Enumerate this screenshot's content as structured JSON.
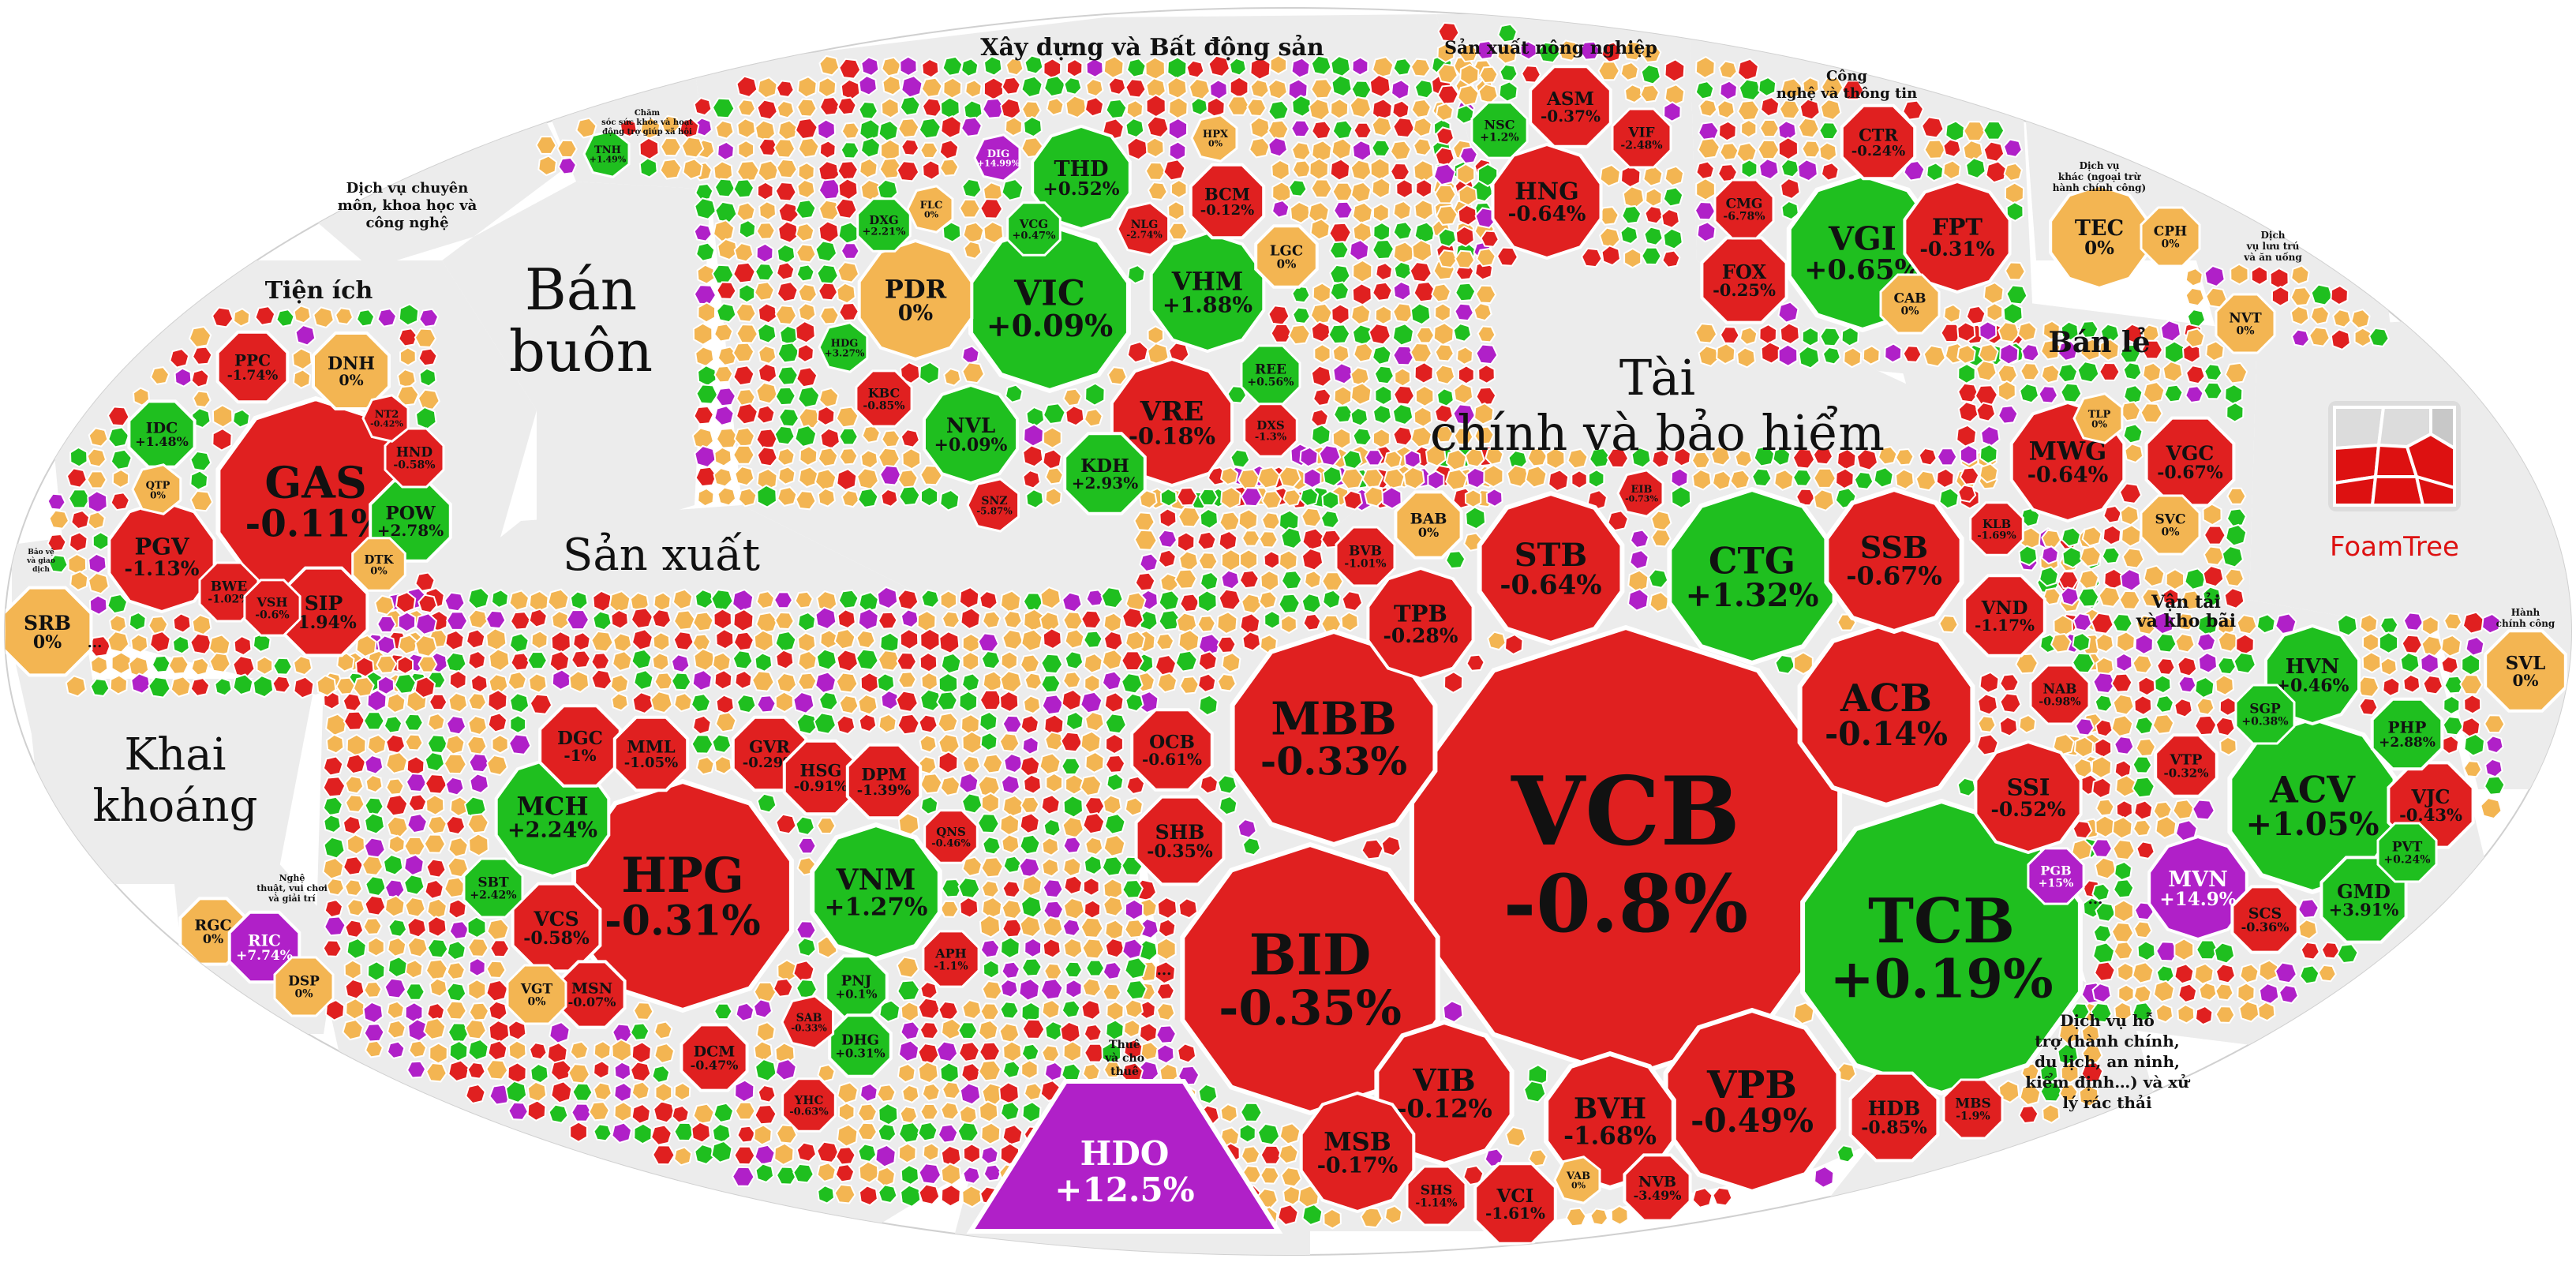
{
  "colors": {
    "up": "#1fbf1f",
    "down": "#e02020",
    "flat": "#f3b552",
    "ceiling": "#b020c8",
    "floor": "#4aa3df",
    "group_bg": "#ededed",
    "gap": "#ffffff"
  },
  "branding": {
    "logo_text": "FoamTree"
  },
  "chart_data": {
    "type": "treemap",
    "title": "",
    "groups": [
      {
        "name": "Xây dựng và Bất động sản",
        "items": [
          {
            "ticker": "VIC",
            "change": 0.09
          },
          {
            "ticker": "VHM",
            "change": 1.88
          },
          {
            "ticker": "VRE",
            "change": -0.18
          },
          {
            "ticker": "PDR",
            "change": 0
          },
          {
            "ticker": "THD",
            "change": 0.52
          },
          {
            "ticker": "NVL",
            "change": 0.09
          },
          {
            "ticker": "KDH",
            "change": 2.93
          },
          {
            "ticker": "BCM",
            "change": -0.12
          },
          {
            "ticker": "VCG",
            "change": 0.47
          },
          {
            "ticker": "NLG",
            "change": -2.74
          },
          {
            "ticker": "DXG",
            "change": 2.21
          },
          {
            "ticker": "LGC",
            "change": 0
          },
          {
            "ticker": "REE",
            "change": 0.56
          },
          {
            "ticker": "DXS",
            "change": -1.3
          },
          {
            "ticker": "KBC",
            "change": -0.85
          },
          {
            "ticker": "HPX",
            "change": 0
          },
          {
            "ticker": "SNZ",
            "change": -5.87
          },
          {
            "ticker": "FLC",
            "change": 0
          },
          {
            "ticker": "HDG",
            "change": 3.27
          },
          {
            "ticker": "DIG",
            "change": 14.99
          }
        ]
      },
      {
        "name": "Sản xuất nông nghiệp",
        "items": [
          {
            "ticker": "HNG",
            "change": -0.64
          },
          {
            "ticker": "ASM",
            "change": -0.37
          },
          {
            "ticker": "VIF",
            "change": -2.48
          },
          {
            "ticker": "NSC",
            "change": 1.2
          }
        ]
      },
      {
        "name": "Công nghệ và thông tin",
        "items": [
          {
            "ticker": "VGI",
            "change": 0.65
          },
          {
            "ticker": "FPT",
            "change": -0.31
          },
          {
            "ticker": "CTR",
            "change": -0.24
          },
          {
            "ticker": "FOX",
            "change": -0.25
          },
          {
            "ticker": "CAB",
            "change": 0
          },
          {
            "ticker": "CMG",
            "change": -6.78
          }
        ]
      },
      {
        "name": "Tài chính và bảo hiểm",
        "items": [
          {
            "ticker": "VCB",
            "change": -0.8
          },
          {
            "ticker": "TCB",
            "change": 0.19
          },
          {
            "ticker": "BID",
            "change": -0.35
          },
          {
            "ticker": "CTG",
            "change": 1.32
          },
          {
            "ticker": "MBB",
            "change": -0.33
          },
          {
            "ticker": "ACB",
            "change": -0.14
          },
          {
            "ticker": "VPB",
            "change": -0.49
          },
          {
            "ticker": "STB",
            "change": -0.64
          },
          {
            "ticker": "SSB",
            "change": -0.67
          },
          {
            "ticker": "VIB",
            "change": -0.12
          },
          {
            "ticker": "BVH",
            "change": -1.68
          },
          {
            "ticker": "SSI",
            "change": -0.52
          },
          {
            "ticker": "TPB",
            "change": -0.28
          },
          {
            "ticker": "MSB",
            "change": -0.17
          },
          {
            "ticker": "HDB",
            "change": -0.85
          },
          {
            "ticker": "SHB",
            "change": -0.35
          },
          {
            "ticker": "VND",
            "change": -1.17
          },
          {
            "ticker": "BAB",
            "change": 0
          },
          {
            "ticker": "OCB",
            "change": -0.61
          },
          {
            "ticker": "EIB",
            "change": -0.73
          },
          {
            "ticker": "BVB",
            "change": -1.01
          },
          {
            "ticker": "VCI",
            "change": -1.61
          },
          {
            "ticker": "SHS",
            "change": -1.14
          },
          {
            "ticker": "NVB",
            "change": -3.49
          },
          {
            "ticker": "MBS",
            "change": -1.9
          },
          {
            "ticker": "KLB",
            "change": -1.69
          },
          {
            "ticker": "NAB",
            "change": -0.98
          },
          {
            "ticker": "VAB",
            "change": 0
          },
          {
            "ticker": "PGB",
            "change": 15
          }
        ]
      },
      {
        "name": "Sản xuất",
        "items": [
          {
            "ticker": "HPG",
            "change": -0.31
          },
          {
            "ticker": "VNM",
            "change": 1.27
          },
          {
            "ticker": "MCH",
            "change": 2.24
          },
          {
            "ticker": "DGC",
            "change": -1
          },
          {
            "ticker": "MML",
            "change": -1.05
          },
          {
            "ticker": "GVR",
            "change": -0.29
          },
          {
            "ticker": "HSG",
            "change": -0.91
          },
          {
            "ticker": "DPM",
            "change": -1.39
          },
          {
            "ticker": "VCS",
            "change": -0.58
          },
          {
            "ticker": "SBT",
            "change": 2.42
          },
          {
            "ticker": "MSN",
            "change": -0.07
          },
          {
            "ticker": "VGT",
            "change": 0
          },
          {
            "ticker": "DCM",
            "change": -0.47
          },
          {
            "ticker": "PNJ",
            "change": 0.1
          },
          {
            "ticker": "DHG",
            "change": 0.31
          },
          {
            "ticker": "APH",
            "change": -1.1
          },
          {
            "ticker": "QNS",
            "change": -0.46
          },
          {
            "ticker": "YHC",
            "change": -0.63
          },
          {
            "ticker": "SAB",
            "change": -0.33
          }
        ]
      },
      {
        "name": "Tiện ích",
        "items": [
          {
            "ticker": "GAS",
            "change": -0.11
          },
          {
            "ticker": "PGV",
            "change": -1.13
          },
          {
            "ticker": "POW",
            "change": 2.78
          },
          {
            "ticker": "SIP",
            "change": -1.94
          },
          {
            "ticker": "DNH",
            "change": 0
          },
          {
            "ticker": "PPC",
            "change": -1.74
          },
          {
            "ticker": "IDC",
            "change": 1.48
          },
          {
            "ticker": "HND",
            "change": -0.58
          },
          {
            "ticker": "NT2",
            "change": -0.42
          },
          {
            "ticker": "BWE",
            "change": -1.02
          },
          {
            "ticker": "VSH",
            "change": -0.6
          },
          {
            "ticker": "DTK",
            "change": 0
          },
          {
            "ticker": "QTP",
            "change": 0
          }
        ]
      },
      {
        "name": "Bán buôn",
        "items": []
      },
      {
        "name": "Khai khoáng",
        "items": []
      },
      {
        "name": "Thuê và cho thuê",
        "items": [
          {
            "ticker": "HDO",
            "change": 12.5
          }
        ]
      },
      {
        "name": "Bán lẻ",
        "items": [
          {
            "ticker": "MWG",
            "change": -0.64
          },
          {
            "ticker": "VGC",
            "change": -0.67
          },
          {
            "ticker": "SVC",
            "change": 0
          },
          {
            "ticker": "TLP",
            "change": 0
          }
        ]
      },
      {
        "name": "Vận tải và kho bãi",
        "items": [
          {
            "ticker": "ACV",
            "change": 1.05
          },
          {
            "ticker": "MVN",
            "change": 14.9
          },
          {
            "ticker": "HVN",
            "change": 0.46
          },
          {
            "ticker": "VJC",
            "change": -0.43
          },
          {
            "ticker": "GMD",
            "change": 3.91
          },
          {
            "ticker": "PHP",
            "change": 2.88
          },
          {
            "ticker": "SCS",
            "change": -0.36
          },
          {
            "ticker": "PVT",
            "change": 0.24
          },
          {
            "ticker": "VTP",
            "change": -0.32
          },
          {
            "ticker": "SGP",
            "change": 0.38
          }
        ]
      },
      {
        "name": "Dịch vụ lưu trú và ăn uống",
        "items": [
          {
            "ticker": "NVT",
            "change": 0
          }
        ]
      },
      {
        "name": "Dịch vụ khác (ngoại trừ hành chính công)",
        "items": [
          {
            "ticker": "TEC",
            "change": 0
          },
          {
            "ticker": "CPH",
            "change": 0
          }
        ]
      },
      {
        "name": "Dịch vụ hỗ trợ (hành chính, du lịch, an ninh, kiểm định…) và xử lý rác thải",
        "items": []
      },
      {
        "name": "Hành chính công",
        "items": [
          {
            "ticker": "SVL",
            "change": 0
          }
        ]
      },
      {
        "name": "Nghệ thuật, vui chơi và giải trí",
        "items": [
          {
            "ticker": "RGC",
            "change": 0
          },
          {
            "ticker": "RIC",
            "change": 7.74
          },
          {
            "ticker": "DSP",
            "change": 0
          }
        ]
      },
      {
        "name": "Bảo vệ và giao dịch",
        "items": [
          {
            "ticker": "SRB",
            "change": 0
          }
        ]
      },
      {
        "name": "Dịch vụ chuyên môn, khoa học và công nghệ",
        "items": []
      },
      {
        "name": "Chăm sóc sức khỏe và hoạt động trợ giúp xã hội",
        "items": [
          {
            "ticker": "TNH",
            "change": 1.49
          }
        ]
      }
    ]
  },
  "labels": {
    "xay_dung": "Xây dựng và Bất động sản",
    "nong_nghiep": "Sản xuất nông nghiệp",
    "cong_nghe_1": "Công",
    "cong_nghe_2": "nghệ và thông tin",
    "tai_chinh_1": "Tài",
    "tai_chinh_2": "chính và bảo hiểm",
    "san_xuat": "Sản xuất",
    "tien_ich": "Tiện ích",
    "ban_buon_1": "Bán",
    "ban_buon_2": "buôn",
    "khai_khoang_1": "Khai",
    "khai_khoang_2": "khoáng",
    "thue_1": "Thuê",
    "thue_2": "và cho",
    "thue_3": "thuê",
    "ban_le": "Bán lẻ",
    "van_tai_1": "Vận tải",
    "van_tai_2": "và kho bãi",
    "dv_chuyen_mon_1": "Dịch vụ chuyên",
    "dv_chuyen_mon_2": "môn, khoa học và",
    "dv_chuyen_mon_3": "công nghệ",
    "dv_ho_tro_1": "Dịch vụ hỗ",
    "dv_ho_tro_2": "trợ (hành chính,",
    "dv_ho_tro_3": "du lịch, an ninh,",
    "dv_ho_tro_4": "kiểm định…) và xử",
    "dv_ho_tro_5": "lý rác thải",
    "hanh_chinh_1": "Hành",
    "hanh_chinh_2": "chính công",
    "luu_tru_1": "Dịch",
    "luu_tru_2": "vụ lưu trú",
    "luu_tru_3": "và ăn uống",
    "dv_khac_1": "Dịch vụ",
    "dv_khac_2": "khác (ngoại trừ",
    "dv_khac_3": "hành chính công)",
    "nghe_thuat_1": "Nghệ",
    "nghe_thuat_2": "thuật, vui chơi",
    "nghe_thuat_3": "và giải trí",
    "cham_soc_1": "Chăm",
    "cham_soc_2": "sóc sức khỏe và hoạt",
    "cham_soc_3": "động trợ giúp xã hội",
    "bao_ve_1": "Bảo vệ",
    "bao_ve_2": "và giao",
    "bao_ve_3": "dịch",
    "ellipsis": "..."
  }
}
